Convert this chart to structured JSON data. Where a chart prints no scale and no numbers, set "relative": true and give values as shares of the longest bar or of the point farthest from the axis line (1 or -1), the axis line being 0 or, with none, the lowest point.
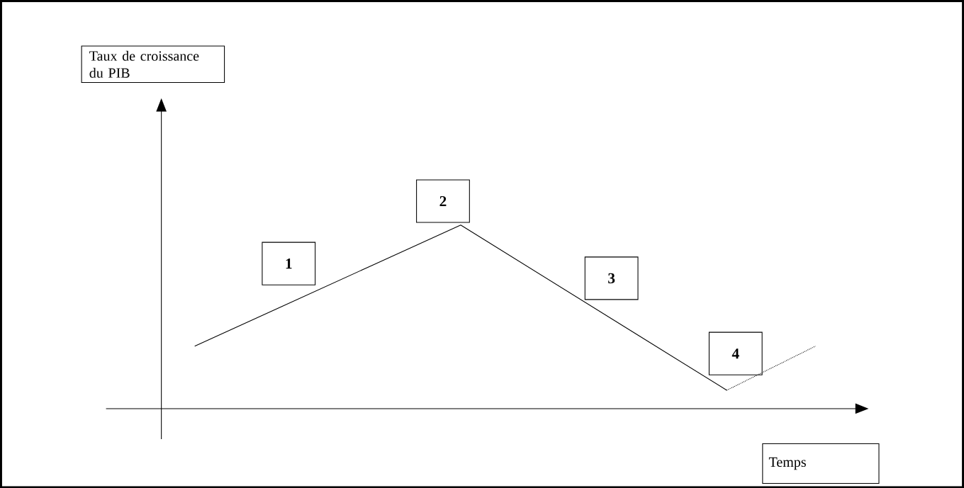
{
  "chart_data": {
    "type": "line",
    "relative": true,
    "categories": [
      null,
      null,
      null,
      null,
      null,
      null,
      null,
      null
    ],
    "series": [
      {
        "color": "#000000",
        "line_style": "solid",
        "values": [
          0.34,
          0.56,
          0.78,
          1,
          0.7,
          0.4,
          0.1,
          null
        ]
      },
      {
        "color": "#000000",
        "line_style": "dotted",
        "values": [
          null,
          null,
          null,
          null,
          null,
          null,
          0.1,
          0.34
        ]
      }
    ],
    "annotations": [
      "1",
      "2",
      "3",
      "4",
      "Temps",
      "Taux de croissance du PIB"
    ]
  }
}
